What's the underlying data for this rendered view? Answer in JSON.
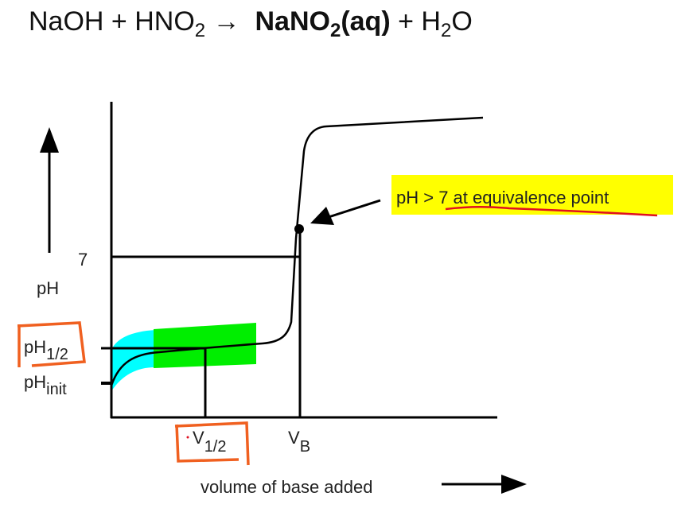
{
  "equation": {
    "reactants": "NaOH + HNO",
    "reactant_sub": "2",
    "arrow": "→",
    "product_bold": "NaNO",
    "product_bold_sub": "2",
    "product_bold_tail": "(aq)",
    "plus": "+ H",
    "water_sub": "2",
    "water_tail": "O"
  },
  "diagram": {
    "y_axis_label": "pH",
    "tick_7": "7",
    "ph_half": {
      "main": "pH",
      "sub": "1/2"
    },
    "ph_init": {
      "main": "pH",
      "sub": "init"
    },
    "v_half": {
      "main": "V",
      "sub": "1/2"
    },
    "v_b": {
      "main": "V",
      "sub": "B"
    },
    "x_axis_label": "volume of base added",
    "annotation": "pH > 7 at equivalence point",
    "colors": {
      "cyan_highlight": "#00ffff",
      "green_highlight": "#00ee00",
      "yellow_highlight": "#ffff00",
      "orange_ink": "#f06020",
      "red_ink": "#e01020"
    }
  }
}
